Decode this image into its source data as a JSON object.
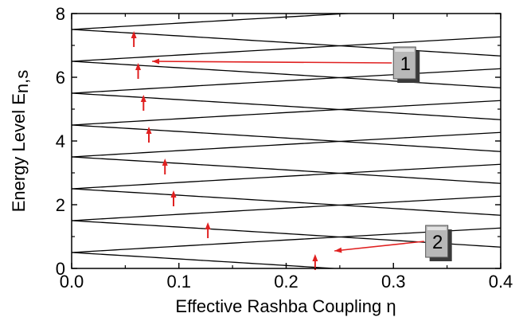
{
  "chart_data": {
    "type": "line",
    "title": "",
    "xlabel": "Effective Rashba  Coupling η",
    "ylabel": "Energy Level E",
    "ylabel_subscript": "n,s",
    "xlim": [
      0,
      0.4
    ],
    "ylim": [
      0,
      8
    ],
    "x_ticks": [
      0,
      0.1,
      0.2,
      0.3,
      0.4
    ],
    "x_tick_labels": [
      "0.0",
      "0.1",
      "0.2",
      "0.3",
      "0.4"
    ],
    "y_ticks": [
      0,
      2,
      4,
      6,
      8
    ],
    "y_tick_labels": [
      "0",
      "2",
      "4",
      "6",
      "8"
    ],
    "grid": false,
    "line_color": "#000000",
    "arrow_color": "#e02020",
    "level_slope": 2.0,
    "level_curvature": 0.2,
    "levels": [
      {
        "n": 0,
        "E0": 0.5
      },
      {
        "n": 1,
        "E0": 1.5
      },
      {
        "n": 2,
        "E0": 2.5
      },
      {
        "n": 3,
        "E0": 3.5
      },
      {
        "n": 4,
        "E0": 4.5
      },
      {
        "n": 5,
        "E0": 5.5
      },
      {
        "n": 6,
        "E0": 6.5
      },
      {
        "n": 7,
        "E0": 7.5
      }
    ],
    "crossing_arrows": [
      {
        "x": 0.227,
        "y": 0.45
      },
      {
        "x": 0.127,
        "y": 1.45
      },
      {
        "x": 0.095,
        "y": 2.45
      },
      {
        "x": 0.087,
        "y": 3.45
      },
      {
        "x": 0.072,
        "y": 4.45
      },
      {
        "x": 0.067,
        "y": 5.45
      },
      {
        "x": 0.062,
        "y": 6.45
      },
      {
        "x": 0.058,
        "y": 7.45
      }
    ],
    "callouts": [
      {
        "label": "1",
        "box_x": 0.3,
        "box_y": 6.95,
        "target_x": 0.075,
        "target_y": 6.5
      },
      {
        "label": "2",
        "box_x": 0.33,
        "box_y": 1.35,
        "target_x": 0.245,
        "target_y": 0.55
      }
    ]
  }
}
